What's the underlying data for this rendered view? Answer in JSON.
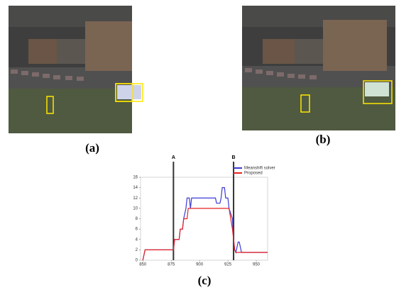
{
  "panel_labels": [
    "(a)",
    "(b)",
    "(c)"
  ],
  "chart_data": {
    "type": "line",
    "xlim": [
      848,
      960
    ],
    "xticks": [
      850,
      875,
      900,
      925,
      950
    ],
    "ylim": [
      0,
      16
    ],
    "yticks": [
      0,
      2,
      4,
      6,
      8,
      10,
      12,
      14,
      16
    ],
    "grid": false,
    "legend": "top-right",
    "annotations": [
      {
        "text": "A",
        "x": 877
      },
      {
        "text": "B",
        "x": 930
      }
    ],
    "series": [
      {
        "name": "Meanshift solver",
        "color": "#3b3bd6",
        "x": [
          850,
          852,
          877,
          878,
          882,
          883,
          885,
          886,
          888,
          889,
          891,
          892,
          893,
          905,
          906,
          914,
          915,
          918,
          919,
          920,
          922,
          923,
          925,
          926,
          929,
          930,
          931,
          932,
          934,
          935,
          937,
          938,
          960
        ],
        "values": [
          0,
          2,
          2,
          4,
          4,
          6,
          6,
          8,
          10,
          12,
          12,
          10,
          12,
          12,
          12,
          12,
          11,
          11,
          12,
          14,
          14,
          12,
          12,
          10,
          8,
          4,
          2,
          1.5,
          3.5,
          3.5,
          1.5,
          1.5,
          1.5
        ]
      },
      {
        "name": "Proposed",
        "color": "#e52222",
        "x": [
          850,
          852,
          877,
          878,
          882,
          883,
          885,
          886,
          889,
          890,
          926,
          929,
          930,
          931,
          932,
          960
        ],
        "values": [
          0,
          2,
          2,
          4,
          4,
          6,
          6,
          8,
          8,
          10,
          10,
          6,
          4,
          2,
          1.5,
          1.5
        ]
      }
    ]
  }
}
